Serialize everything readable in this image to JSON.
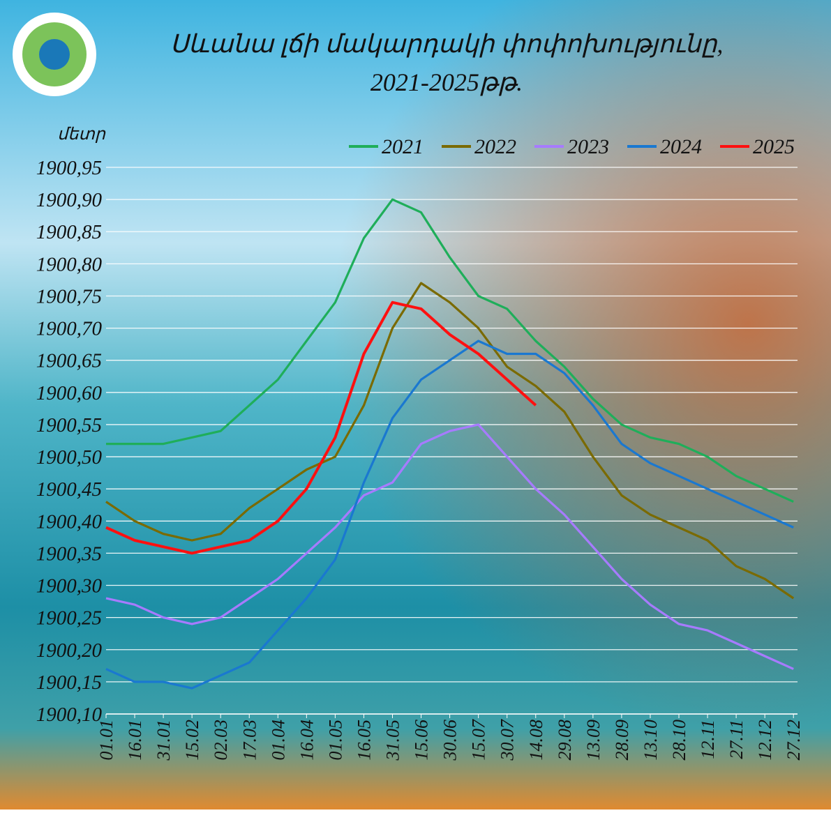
{
  "chart_data": {
    "type": "line",
    "title": [
      "Սևանա լճի մակարդակի փոփոխությունը,",
      "2021-2025թթ."
    ],
    "y_label": "մետր",
    "categories": [
      "01.01",
      "16.01",
      "31.01",
      "15.02",
      "02.03",
      "17.03",
      "01.04",
      "16.04",
      "01.05",
      "16.05",
      "31.05",
      "15.06",
      "30.06",
      "15.07",
      "30.07",
      "14.08",
      "29.08",
      "13.09",
      "28.09",
      "13.10",
      "28.10",
      "12.11",
      "27.11",
      "12.12",
      "27.12"
    ],
    "series": [
      {
        "name": "2021",
        "color": "#1fae5a",
        "values": [
          1900.52,
          1900.52,
          1900.52,
          1900.53,
          1900.54,
          1900.58,
          1900.62,
          1900.68,
          1900.74,
          1900.84,
          1900.9,
          1900.88,
          1900.81,
          1900.75,
          1900.73,
          1900.68,
          1900.64,
          1900.59,
          1900.55,
          1900.53,
          1900.52,
          1900.5,
          1900.47,
          1900.45,
          1900.43
        ]
      },
      {
        "name": "2022",
        "color": "#7a6a00",
        "values": [
          1900.43,
          1900.4,
          1900.38,
          1900.37,
          1900.38,
          1900.42,
          1900.45,
          1900.48,
          1900.5,
          1900.58,
          1900.7,
          1900.77,
          1900.74,
          1900.7,
          1900.64,
          1900.61,
          1900.57,
          1900.5,
          1900.44,
          1900.41,
          1900.39,
          1900.37,
          1900.33,
          1900.31,
          1900.28
        ]
      },
      {
        "name": "2023",
        "color": "#a77bff",
        "values": [
          1900.28,
          1900.27,
          1900.25,
          1900.24,
          1900.25,
          1900.28,
          1900.31,
          1900.35,
          1900.39,
          1900.44,
          1900.46,
          1900.52,
          1900.54,
          1900.55,
          1900.5,
          1900.45,
          1900.41,
          1900.36,
          1900.31,
          1900.27,
          1900.24,
          1900.23,
          1900.21,
          1900.19,
          1900.17
        ]
      },
      {
        "name": "2024",
        "color": "#1a78d0",
        "values": [
          1900.17,
          1900.15,
          1900.15,
          1900.14,
          1900.16,
          1900.18,
          1900.23,
          1900.28,
          1900.34,
          1900.46,
          1900.56,
          1900.62,
          1900.65,
          1900.68,
          1900.66,
          1900.66,
          1900.63,
          1900.58,
          1900.52,
          1900.49,
          1900.47,
          1900.45,
          1900.43,
          1900.41,
          1900.39
        ]
      },
      {
        "name": "2025",
        "color": "#ff1010",
        "values": [
          1900.39,
          1900.37,
          1900.36,
          1900.35,
          1900.36,
          1900.37,
          1900.4,
          1900.45,
          1900.53,
          1900.66,
          1900.74,
          1900.73,
          1900.69,
          1900.66,
          1900.62,
          1900.58,
          null,
          null,
          null,
          null,
          null,
          null,
          null,
          null,
          null
        ]
      }
    ],
    "ylim": [
      1900.1,
      1900.95
    ],
    "yticks": [
      {
        "value": 1900.1,
        "label": "1900,10"
      },
      {
        "value": 1900.15,
        "label": "1900,15"
      },
      {
        "value": 1900.2,
        "label": "1900,20"
      },
      {
        "value": 1900.25,
        "label": "1900,25"
      },
      {
        "value": 1900.3,
        "label": "1900,30"
      },
      {
        "value": 1900.35,
        "label": "1900,35"
      },
      {
        "value": 1900.4,
        "label": "1900,40"
      },
      {
        "value": 1900.45,
        "label": "1900,45"
      },
      {
        "value": 1900.5,
        "label": "1900,50"
      },
      {
        "value": 1900.55,
        "label": "1900,55"
      },
      {
        "value": 1900.6,
        "label": "1900,60"
      },
      {
        "value": 1900.65,
        "label": "1900,65"
      },
      {
        "value": 1900.7,
        "label": "1900,70"
      },
      {
        "value": 1900.75,
        "label": "1900,75"
      },
      {
        "value": 1900.8,
        "label": "1900,80"
      },
      {
        "value": 1900.85,
        "label": "1900,85"
      },
      {
        "value": 1900.9,
        "label": "1900,90"
      },
      {
        "value": 1900.95,
        "label": "1900,95"
      }
    ],
    "grid": true,
    "legend": "top-right"
  }
}
